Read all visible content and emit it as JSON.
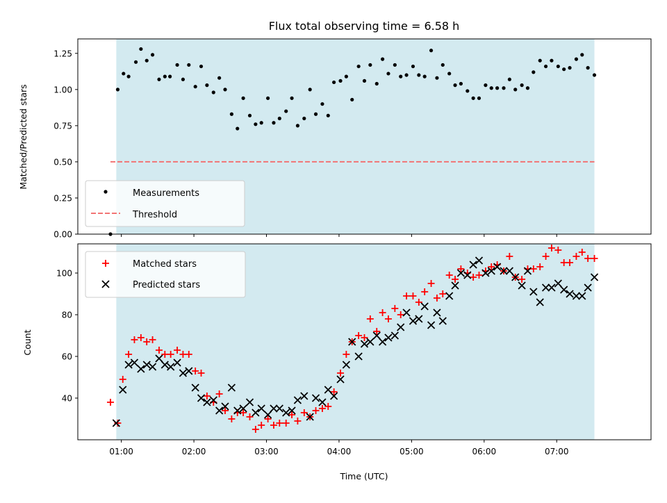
{
  "chart_data": [
    {
      "type": "scatter",
      "title": "Flux total observing time = 6.58 h",
      "xlabel": "",
      "ylabel": "Matched/Predicted stars",
      "ylim": [
        0,
        1.35
      ],
      "yticks": [
        "0.00",
        "0.25",
        "0.50",
        "0.75",
        "1.00",
        "1.25"
      ],
      "ytick_values": [
        0,
        0.25,
        0.5,
        0.75,
        1.0,
        1.25
      ],
      "shaded_span_hours": [
        0.93,
        7.52
      ],
      "shade_color": "#d3eaf0",
      "legend": {
        "position": "lower-left",
        "entries": [
          "Measurements",
          "Threshold"
        ]
      },
      "series": [
        {
          "name": "Measurements",
          "marker": "dot",
          "color": "#000000",
          "x": [
            0.85,
            0.95,
            1.03,
            1.1,
            1.2,
            1.27,
            1.35,
            1.43,
            1.52,
            1.6,
            1.67,
            1.77,
            1.85,
            1.93,
            2.02,
            2.1,
            2.18,
            2.27,
            2.35,
            2.43,
            2.52,
            2.6,
            2.68,
            2.77,
            2.85,
            2.93,
            3.02,
            3.1,
            3.18,
            3.27,
            3.35,
            3.43,
            3.52,
            3.6,
            3.68,
            3.77,
            3.85,
            3.93,
            4.02,
            4.1,
            4.18,
            4.27,
            4.35,
            4.43,
            4.52,
            4.6,
            4.68,
            4.77,
            4.85,
            4.93,
            5.02,
            5.1,
            5.18,
            5.27,
            5.35,
            5.43,
            5.52,
            5.6,
            5.68,
            5.77,
            5.85,
            5.93,
            6.02,
            6.1,
            6.18,
            6.27,
            6.35,
            6.43,
            6.52,
            6.6,
            6.68,
            6.77,
            6.85,
            6.93,
            7.02,
            7.1,
            7.18,
            7.27,
            7.35,
            7.43,
            7.52
          ],
          "y": [
            0.0,
            1.0,
            1.11,
            1.09,
            1.19,
            1.28,
            1.2,
            1.24,
            1.07,
            1.09,
            1.09,
            1.17,
            1.07,
            1.17,
            1.02,
            1.16,
            1.03,
            0.98,
            1.08,
            1.0,
            0.83,
            0.73,
            0.94,
            0.82,
            0.76,
            0.77,
            0.94,
            0.77,
            0.8,
            0.85,
            0.94,
            0.75,
            0.8,
            1.0,
            0.83,
            0.9,
            0.82,
            1.05,
            1.06,
            1.09,
            0.93,
            1.16,
            1.06,
            1.17,
            1.04,
            1.21,
            1.11,
            1.17,
            1.09,
            1.1,
            1.16,
            1.1,
            1.09,
            1.27,
            1.08,
            1.17,
            1.11,
            1.03,
            1.04,
            0.99,
            0.94,
            0.94,
            1.03,
            1.01,
            1.01,
            1.01,
            1.07,
            1.0,
            1.03,
            1.01,
            1.12,
            1.2,
            1.16,
            1.2,
            1.16,
            1.14,
            1.15,
            1.21,
            1.24,
            1.15,
            1.1
          ]
        },
        {
          "name": "Threshold",
          "marker": "dashed-line",
          "color": "#f27474",
          "x": [
            0.85,
            7.52
          ],
          "y": [
            0.5,
            0.5
          ]
        }
      ]
    },
    {
      "type": "scatter",
      "title": "",
      "xlabel": "Time (UTC)",
      "ylabel": "Count",
      "ylim": [
        20,
        114
      ],
      "yticks": [
        "40",
        "60",
        "80",
        "100"
      ],
      "ytick_values": [
        40,
        60,
        80,
        100
      ],
      "xlim_hours": [
        0.4,
        8.3
      ],
      "xticks": [
        "01:00",
        "02:00",
        "03:00",
        "04:00",
        "05:00",
        "06:00",
        "07:00"
      ],
      "xtick_values_hours": [
        1,
        2,
        3,
        4,
        5,
        6,
        7
      ],
      "shaded_span_hours": [
        0.93,
        7.52
      ],
      "shade_color": "#d3eaf0",
      "legend": {
        "position": "upper-left",
        "entries": [
          "Matched stars",
          "Predicted stars"
        ]
      },
      "series": [
        {
          "name": "Matched stars",
          "marker": "plus",
          "color": "#ff0000",
          "x": [
            0.85,
            0.95,
            1.02,
            1.1,
            1.18,
            1.27,
            1.35,
            1.43,
            1.52,
            1.6,
            1.68,
            1.77,
            1.85,
            1.93,
            2.02,
            2.1,
            2.18,
            2.27,
            2.35,
            2.43,
            2.52,
            2.6,
            2.68,
            2.77,
            2.85,
            2.93,
            3.02,
            3.1,
            3.18,
            3.27,
            3.35,
            3.43,
            3.52,
            3.6,
            3.68,
            3.77,
            3.85,
            3.93,
            4.02,
            4.1,
            4.18,
            4.27,
            4.35,
            4.43,
            4.52,
            4.6,
            4.68,
            4.77,
            4.85,
            4.93,
            5.02,
            5.1,
            5.18,
            5.27,
            5.35,
            5.43,
            5.52,
            5.6,
            5.68,
            5.77,
            5.85,
            5.93,
            6.02,
            6.1,
            6.18,
            6.27,
            6.35,
            6.43,
            6.52,
            6.6,
            6.68,
            6.77,
            6.85,
            6.93,
            7.02,
            7.1,
            7.18,
            7.27,
            7.35,
            7.43,
            7.52
          ],
          "y": [
            38,
            28,
            49,
            61,
            68,
            69,
            67,
            68,
            63,
            61,
            61,
            63,
            61,
            61,
            53,
            52,
            41,
            38,
            42,
            34,
            30,
            33,
            33,
            31,
            25,
            27,
            30,
            27,
            28,
            28,
            32,
            29,
            33,
            31,
            34,
            35,
            36,
            43,
            52,
            61,
            67,
            70,
            69,
            78,
            72,
            81,
            78,
            83,
            80,
            89,
            89,
            86,
            91,
            95,
            88,
            90,
            99,
            97,
            102,
            100,
            98,
            99,
            101,
            103,
            104,
            101,
            108,
            98,
            97,
            102,
            102,
            103,
            108,
            112,
            111,
            105,
            105,
            108,
            110,
            107,
            107
          ]
        },
        {
          "name": "Predicted stars",
          "marker": "x",
          "color": "#000000",
          "x": [
            0.93,
            1.02,
            1.1,
            1.18,
            1.27,
            1.35,
            1.43,
            1.52,
            1.6,
            1.68,
            1.77,
            1.85,
            1.93,
            2.02,
            2.1,
            2.18,
            2.27,
            2.35,
            2.43,
            2.52,
            2.6,
            2.68,
            2.77,
            2.85,
            2.93,
            3.02,
            3.1,
            3.18,
            3.27,
            3.35,
            3.43,
            3.52,
            3.6,
            3.68,
            3.77,
            3.85,
            3.93,
            4.02,
            4.1,
            4.18,
            4.27,
            4.35,
            4.43,
            4.52,
            4.6,
            4.68,
            4.77,
            4.85,
            4.93,
            5.02,
            5.1,
            5.18,
            5.27,
            5.35,
            5.43,
            5.52,
            5.6,
            5.68,
            5.77,
            5.85,
            5.93,
            6.02,
            6.1,
            6.18,
            6.27,
            6.35,
            6.43,
            6.52,
            6.6,
            6.68,
            6.77,
            6.85,
            6.93,
            7.02,
            7.1,
            7.18,
            7.27,
            7.35,
            7.43,
            7.52
          ],
          "y": [
            28,
            44,
            56,
            57,
            54,
            56,
            55,
            59,
            56,
            55,
            57,
            52,
            53,
            45,
            40,
            38,
            39,
            34,
            36,
            45,
            34,
            35,
            38,
            33,
            35,
            32,
            35,
            35,
            33,
            34,
            39,
            41,
            31,
            40,
            38,
            44,
            41,
            49,
            56,
            67,
            60,
            66,
            67,
            70,
            67,
            69,
            70,
            74,
            81,
            77,
            78,
            84,
            75,
            81,
            77,
            89,
            94,
            100,
            99,
            104,
            106,
            100,
            101,
            103,
            101,
            101,
            98,
            94,
            101,
            91,
            86,
            93,
            93,
            95,
            92,
            90,
            89,
            89,
            93,
            98
          ]
        }
      ]
    }
  ]
}
